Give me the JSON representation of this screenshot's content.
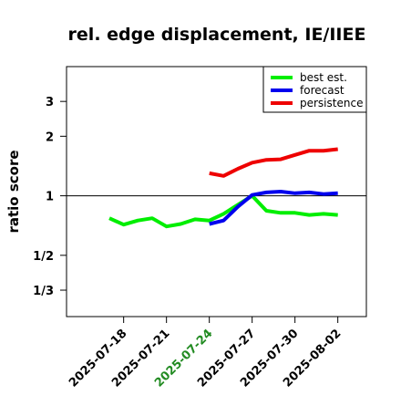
{
  "chart_data": {
    "type": "line",
    "title": "rel. edge displacement, IE/IIEE",
    "xlabel": "",
    "ylabel": "ratio score",
    "y_scale": "log",
    "ylim": [
      0.245,
      4.5
    ],
    "xlim": [
      "2025-07-14",
      "2025-08-04"
    ],
    "y_ticks": [
      {
        "value": 3,
        "label": "3"
      },
      {
        "value": 2,
        "label": "2"
      },
      {
        "value": 1,
        "label": "1"
      },
      {
        "value": 0.5,
        "label": "1/2"
      },
      {
        "value": 0.3333,
        "label": "1/3"
      }
    ],
    "x_ticks": [
      {
        "date": "2025-07-18",
        "label": "2025-07-18",
        "color": "#000000"
      },
      {
        "date": "2025-07-21",
        "label": "2025-07-21",
        "color": "#000000"
      },
      {
        "date": "2025-07-24",
        "label": "2025-07-24",
        "color": "#228b22"
      },
      {
        "date": "2025-07-27",
        "label": "2025-07-27",
        "color": "#000000"
      },
      {
        "date": "2025-07-30",
        "label": "2025-07-30",
        "color": "#000000"
      },
      {
        "date": "2025-08-02",
        "label": "2025-08-02",
        "color": "#000000"
      }
    ],
    "reference_line": 1,
    "legend_position": "top-right",
    "series": [
      {
        "name": "best est.",
        "color": "#00ee00",
        "points": [
          {
            "x": "2025-07-17",
            "y": 0.77
          },
          {
            "x": "2025-07-18",
            "y": 0.715
          },
          {
            "x": "2025-07-19",
            "y": 0.75
          },
          {
            "x": "2025-07-20",
            "y": 0.77
          },
          {
            "x": "2025-07-21",
            "y": 0.7
          },
          {
            "x": "2025-07-22",
            "y": 0.72
          },
          {
            "x": "2025-07-23",
            "y": 0.76
          },
          {
            "x": "2025-07-24",
            "y": 0.75
          },
          {
            "x": "2025-07-25",
            "y": 0.81
          },
          {
            "x": "2025-07-26",
            "y": 0.9
          },
          {
            "x": "2025-07-27",
            "y": 1.0
          },
          {
            "x": "2025-07-28",
            "y": 0.84
          },
          {
            "x": "2025-07-29",
            "y": 0.82
          },
          {
            "x": "2025-07-30",
            "y": 0.82
          },
          {
            "x": "2025-07-31",
            "y": 0.8
          },
          {
            "x": "2025-08-01",
            "y": 0.81
          },
          {
            "x": "2025-08-02",
            "y": 0.8
          }
        ]
      },
      {
        "name": "forecast",
        "color": "#0000ee",
        "points": [
          {
            "x": "2025-07-24",
            "y": 0.72
          },
          {
            "x": "2025-07-25",
            "y": 0.75
          },
          {
            "x": "2025-07-26",
            "y": 0.88
          },
          {
            "x": "2025-07-27",
            "y": 1.01
          },
          {
            "x": "2025-07-28",
            "y": 1.04
          },
          {
            "x": "2025-07-29",
            "y": 1.05
          },
          {
            "x": "2025-07-30",
            "y": 1.03
          },
          {
            "x": "2025-07-31",
            "y": 1.04
          },
          {
            "x": "2025-08-01",
            "y": 1.02
          },
          {
            "x": "2025-08-02",
            "y": 1.03
          }
        ]
      },
      {
        "name": "persistence",
        "color": "#ee0000",
        "points": [
          {
            "x": "2025-07-24",
            "y": 1.3
          },
          {
            "x": "2025-07-25",
            "y": 1.26
          },
          {
            "x": "2025-07-26",
            "y": 1.37
          },
          {
            "x": "2025-07-27",
            "y": 1.47
          },
          {
            "x": "2025-07-28",
            "y": 1.52
          },
          {
            "x": "2025-07-29",
            "y": 1.53
          },
          {
            "x": "2025-07-30",
            "y": 1.61
          },
          {
            "x": "2025-07-31",
            "y": 1.69
          },
          {
            "x": "2025-08-01",
            "y": 1.69
          },
          {
            "x": "2025-08-02",
            "y": 1.72
          }
        ]
      }
    ]
  }
}
